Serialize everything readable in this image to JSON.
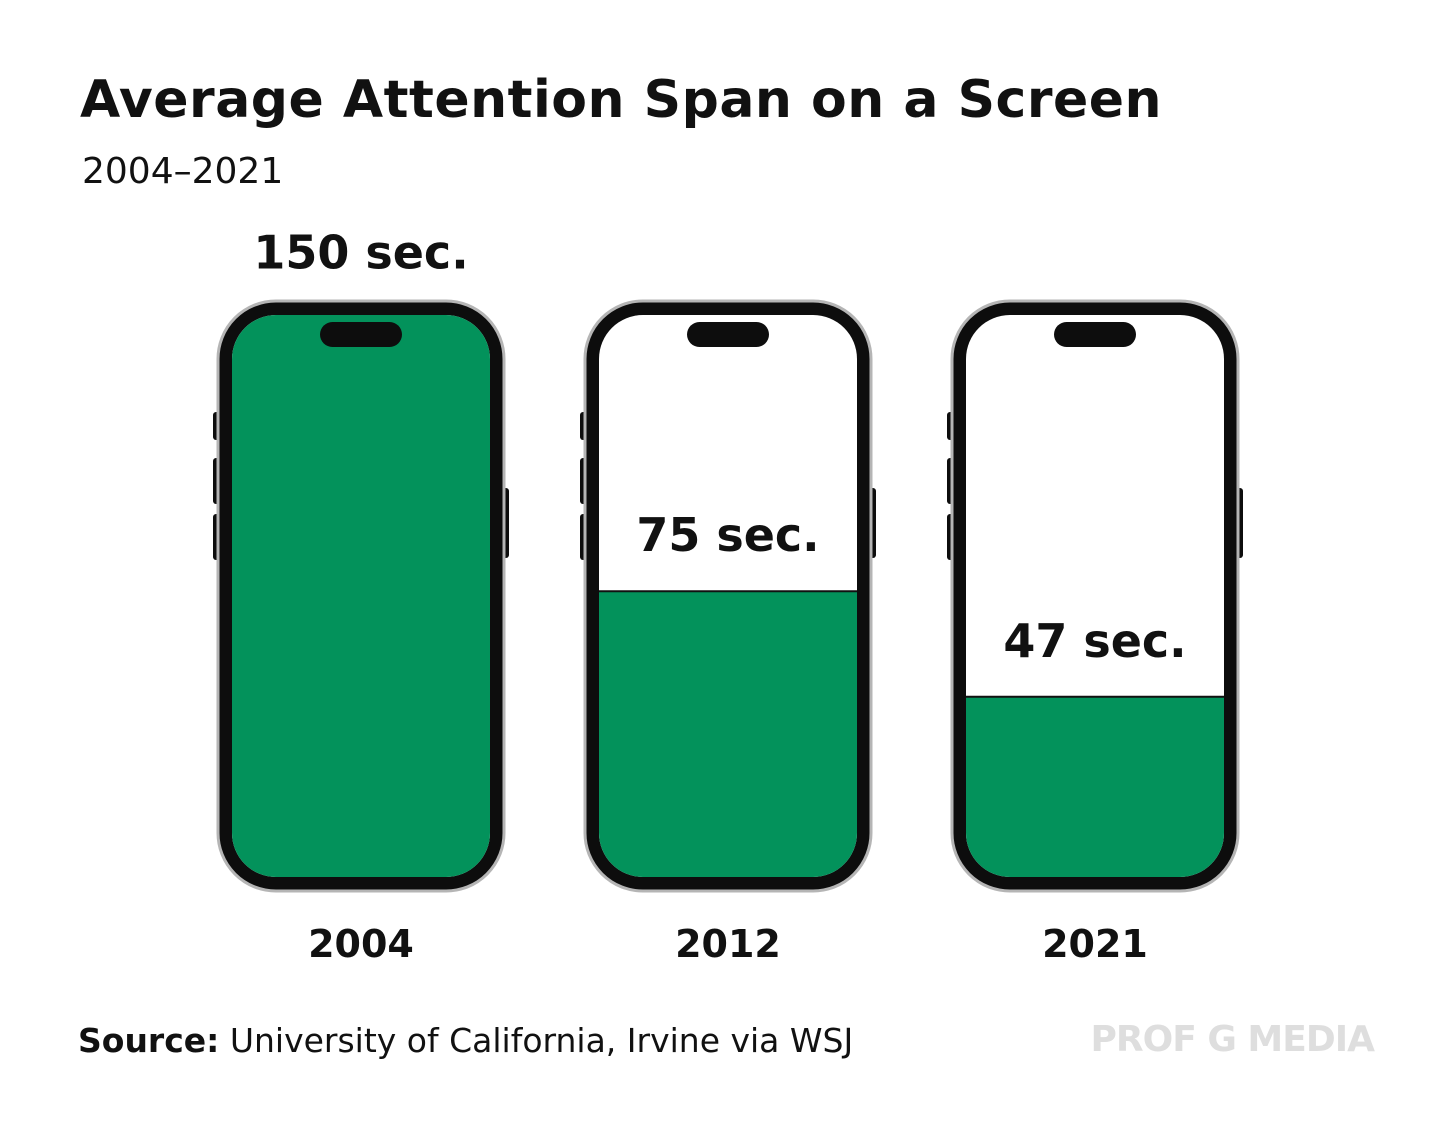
{
  "chart_data": {
    "type": "bar",
    "title": "Average Attention Span on a Screen",
    "subtitle": "2004–2021",
    "categories": [
      "2004",
      "2012",
      "2021"
    ],
    "values": [
      150,
      75,
      47
    ],
    "data_labels": [
      "150 sec.",
      "75 sec.",
      "47 sec."
    ],
    "unit": "sec.",
    "ylim": [
      0,
      170
    ],
    "xlabel": "",
    "ylabel": "",
    "grid": false,
    "bar_color": "#03925b"
  },
  "footer": {
    "source_label": "Source:",
    "source_text": " University of California, Irvine via WSJ",
    "brand": "PROF G MEDIA"
  },
  "colors": {
    "fill": "#03925b",
    "phone_frame": "#0d0d0d",
    "phone_outer": "#b5b5b5",
    "text": "#111111",
    "brand": "#dedede"
  }
}
